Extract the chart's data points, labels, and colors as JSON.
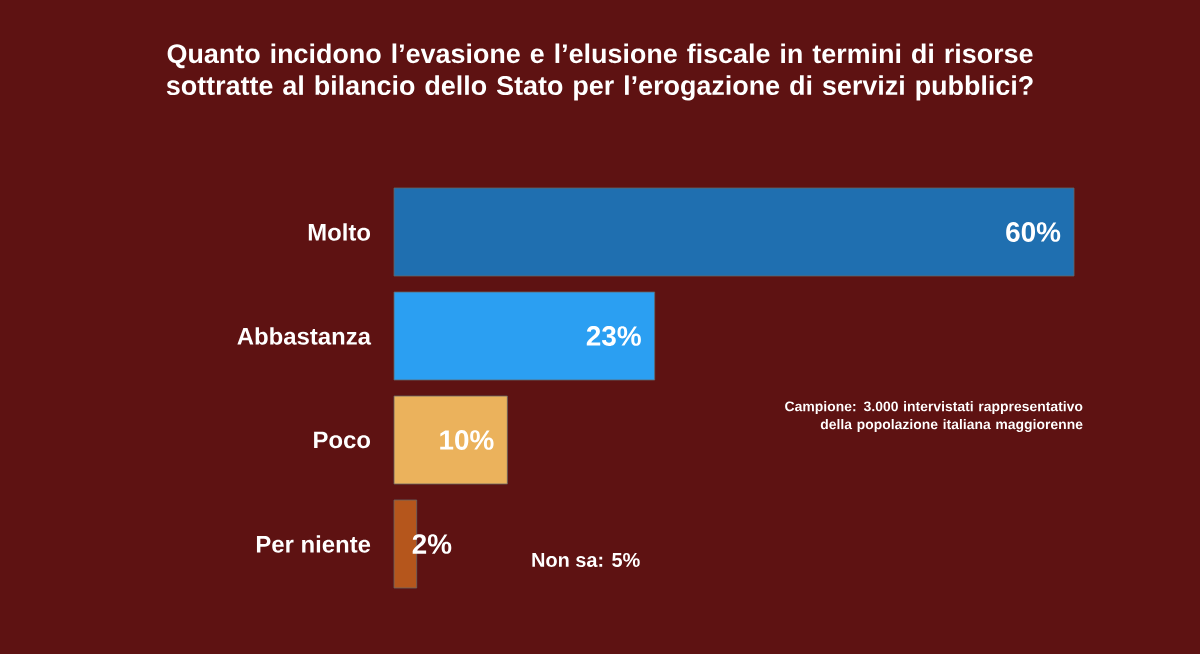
{
  "chart_data": {
    "type": "bar",
    "orientation": "horizontal",
    "title": "Quanto incidono l’evasione e l’elusione fiscale in termini di risorse sottratte al bilancio dello Stato per l’erogazione di servizi pubblici?",
    "categories": [
      "Molto",
      "Abbastanza",
      "Poco",
      "Per niente"
    ],
    "values": [
      60,
      23,
      10,
      2
    ],
    "colors": [
      "#1f6fb0",
      "#2b9ff2",
      "#ebb25c",
      "#b5561c"
    ],
    "value_labels": [
      "60%",
      "23%",
      "10%",
      "2%"
    ],
    "annotations": [
      "Campione: 3.000 intervistati rappresentativo della popolazione italiana maggiorenne",
      "Non sa: 5%"
    ]
  }
}
